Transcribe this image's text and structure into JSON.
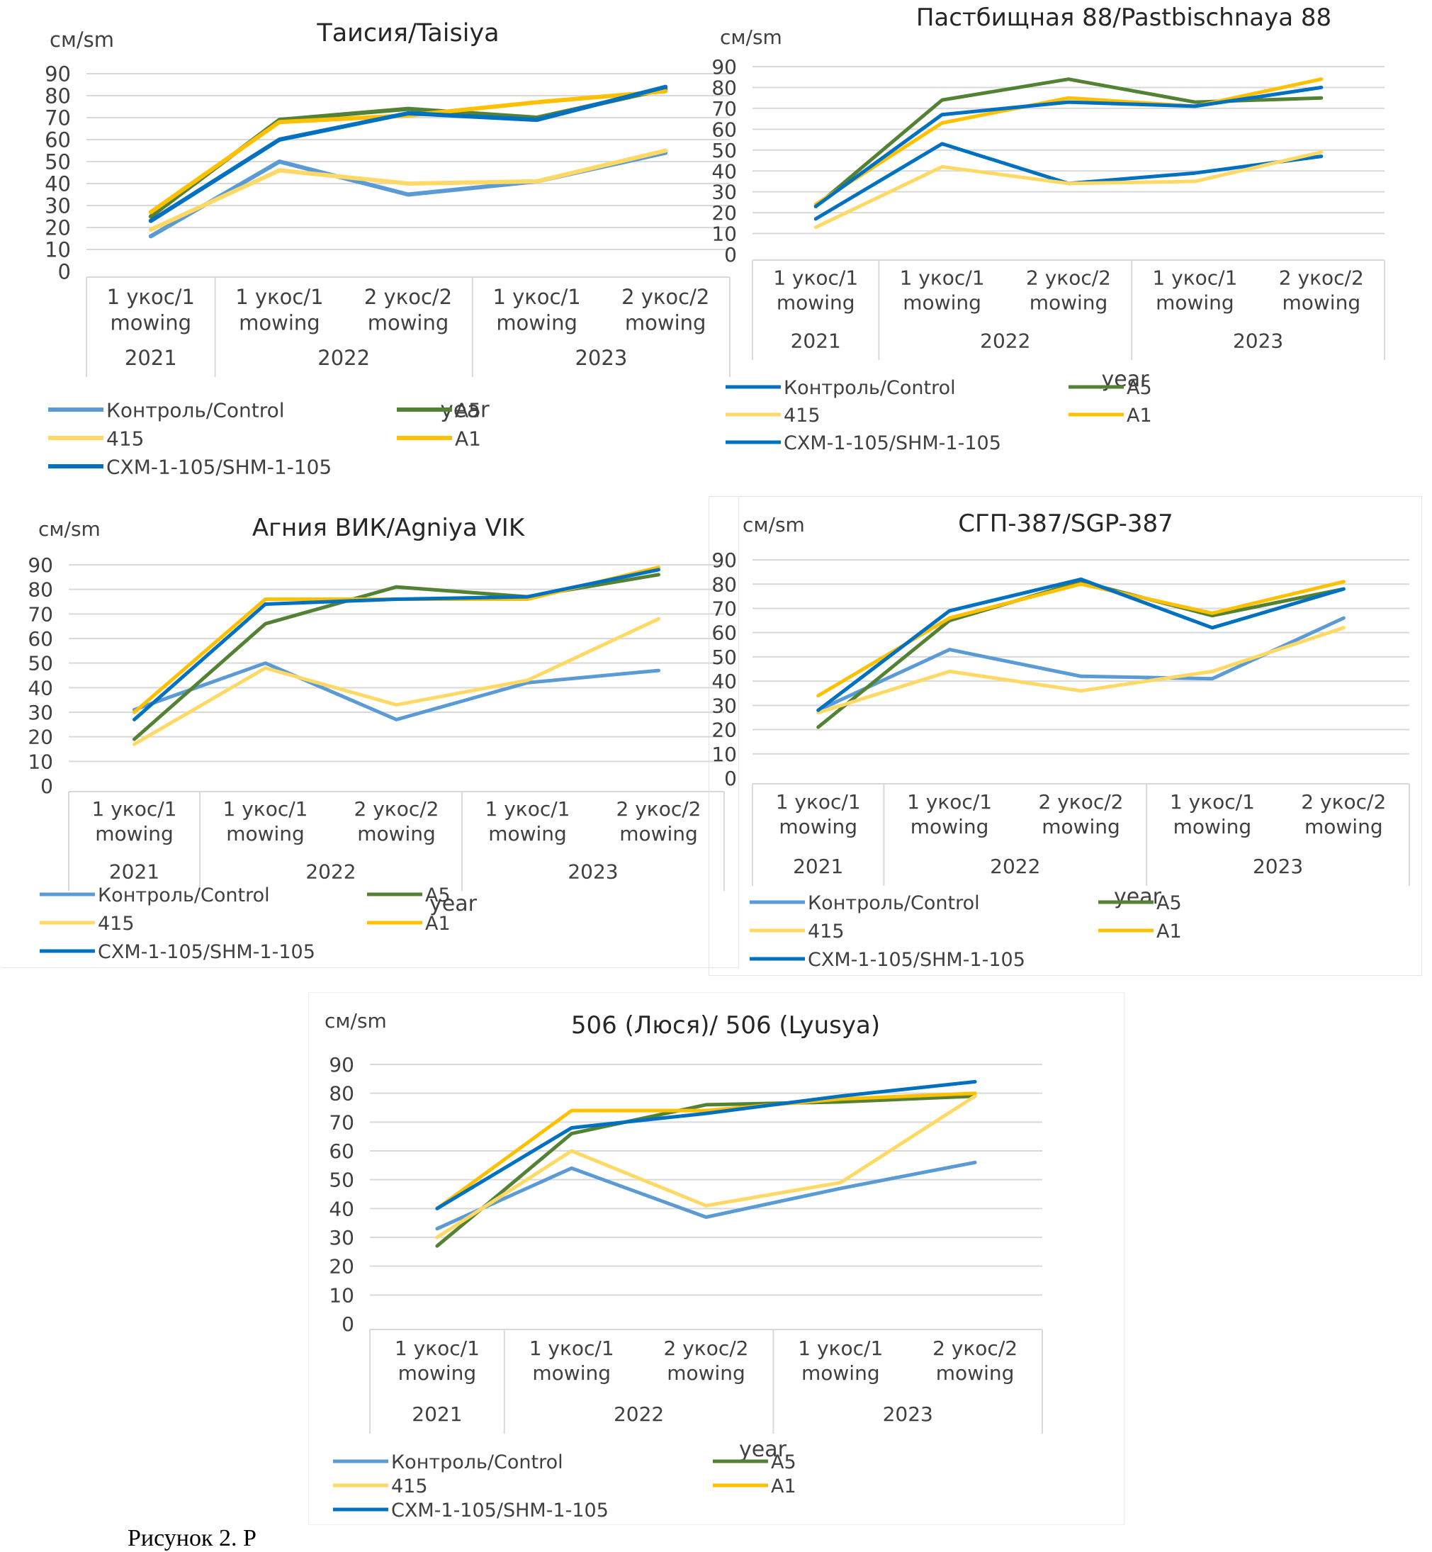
{
  "figure": {
    "caption_visible": "Рисунок 2. Р"
  },
  "series_meta": [
    {
      "key": "control",
      "name": "Контроль/Control"
    },
    {
      "key": "a5",
      "name": "A5"
    },
    {
      "key": "s415",
      "name": "415"
    },
    {
      "key": "a1",
      "name": "A1"
    },
    {
      "key": "shm",
      "name": "СХМ-1-105/SHM-1-105"
    }
  ],
  "chart_data": [
    {
      "type": "line",
      "title": "Таисия/Taisiya",
      "ylabel": "см/sm",
      "xlabel": "year",
      "ylim": [
        0,
        90
      ],
      "yticks": [
        0,
        10,
        20,
        30,
        40,
        50,
        60,
        70,
        80,
        90
      ],
      "grid": true,
      "legend_position": "bottom",
      "categories": [
        "1 укос/1 mowing",
        "1 укос/1 mowing",
        "2 укос/2 mowing",
        "1 укос/1 mowing",
        "2 укос/2 mowing"
      ],
      "category_lines": [
        [
          "1 укос/1",
          "mowing"
        ],
        [
          "1 укос/1",
          "mowing"
        ],
        [
          "2 укос/2",
          "mowing"
        ],
        [
          "1 укос/1",
          "mowing"
        ],
        [
          "2 укос/2",
          "mowing"
        ]
      ],
      "groups": [
        {
          "label": "2021",
          "span": 1
        },
        {
          "label": "2022",
          "span": 2
        },
        {
          "label": "2023",
          "span": 2
        }
      ],
      "series": [
        {
          "name": "Контроль/Control",
          "color": "#5B9BD5",
          "values": [
            16,
            50,
            35,
            41,
            54
          ]
        },
        {
          "name": "A5",
          "color": "#548235",
          "values": [
            25,
            69,
            74,
            70,
            83
          ]
        },
        {
          "name": "415",
          "color": "#FFD966",
          "values": [
            19,
            46,
            40,
            41,
            55
          ]
        },
        {
          "name": "A1",
          "color": "#FFC000",
          "values": [
            27,
            68,
            71,
            77,
            82
          ]
        },
        {
          "name": "СХМ-1-105/SHM-1-105",
          "color": "#0070C0",
          "values": [
            23,
            60,
            72,
            69,
            84
          ]
        }
      ]
    },
    {
      "type": "line",
      "title": "Пастбищная 88/Pastbischnaya 88",
      "ylabel": "см/sm",
      "xlabel": "year",
      "ylim": [
        0,
        90
      ],
      "yticks": [
        0,
        10,
        20,
        30,
        40,
        50,
        60,
        70,
        80,
        90
      ],
      "grid": true,
      "legend_position": "bottom",
      "categories": [
        "1 укос/1 mowing",
        "1 укос/1 mowing",
        "2 укос/2 mowing",
        "1 укос/1 mowing",
        "2 укос/2 mowing"
      ],
      "category_lines": [
        [
          "1 укос/1",
          "mowing"
        ],
        [
          "1 укос/1",
          "mowing"
        ],
        [
          "2 укос/2",
          "mowing"
        ],
        [
          "1 укос/1",
          "mowing"
        ],
        [
          "2 укос/2",
          "mowing"
        ]
      ],
      "groups": [
        {
          "label": "2021",
          "span": 1
        },
        {
          "label": "2022",
          "span": 2
        },
        {
          "label": "2023",
          "span": 2
        }
      ],
      "series": [
        {
          "name": "Контроль/Control",
          "color": "#0070C0",
          "values": [
            17,
            53,
            34,
            39,
            47
          ]
        },
        {
          "name": "A5",
          "color": "#548235",
          "values": [
            23,
            74,
            84,
            73,
            75
          ]
        },
        {
          "name": "415",
          "color": "#FFD966",
          "values": [
            13,
            42,
            34,
            35,
            49
          ]
        },
        {
          "name": "A1",
          "color": "#FFC000",
          "values": [
            24,
            63,
            75,
            71,
            84
          ]
        },
        {
          "name": "СХМ-1-105/SHM-1-105",
          "color": "#0070C0",
          "values": [
            23,
            67,
            73,
            71,
            80
          ]
        }
      ]
    },
    {
      "type": "line",
      "title": "Агния ВИК/Agniya VIK",
      "ylabel": "см/sm",
      "xlabel": "year",
      "ylim": [
        0,
        90
      ],
      "yticks": [
        0,
        10,
        20,
        30,
        40,
        50,
        60,
        70,
        80,
        90
      ],
      "grid": true,
      "legend_position": "bottom",
      "categories": [
        "1 укос/1 mowing",
        "1 укос/1 mowing",
        "2 укос/2 mowing",
        "1 укос/1 mowing",
        "2 укос/2 mowing"
      ],
      "category_lines": [
        [
          "1 укос/1",
          "mowing"
        ],
        [
          "1 укос/1",
          "mowing"
        ],
        [
          "2 укос/2",
          "mowing"
        ],
        [
          "1 укос/1",
          "mowing"
        ],
        [
          "2 укос/2",
          "mowing"
        ]
      ],
      "groups": [
        {
          "label": "2021",
          "span": 1
        },
        {
          "label": "2022",
          "span": 2
        },
        {
          "label": "2023",
          "span": 2
        }
      ],
      "series": [
        {
          "name": "Контроль/Control",
          "color": "#5B9BD5",
          "values": [
            31,
            50,
            27,
            42,
            47
          ]
        },
        {
          "name": "A5",
          "color": "#548235",
          "values": [
            19,
            66,
            81,
            77,
            86
          ]
        },
        {
          "name": "415",
          "color": "#FFD966",
          "values": [
            17,
            48,
            33,
            43,
            68
          ]
        },
        {
          "name": "A1",
          "color": "#FFC000",
          "values": [
            30,
            76,
            76,
            76,
            89
          ]
        },
        {
          "name": "СХМ-1-105/SHM-1-105",
          "color": "#0070C0",
          "values": [
            27,
            74,
            76,
            77,
            88
          ]
        }
      ]
    },
    {
      "type": "line",
      "title": "СГП-387/SGP-387",
      "ylabel": "см/sm",
      "xlabel": "year",
      "ylim": [
        0,
        90
      ],
      "yticks": [
        0,
        10,
        20,
        30,
        40,
        50,
        60,
        70,
        80,
        90
      ],
      "grid": true,
      "legend_position": "bottom",
      "categories": [
        "1 укос/1 mowing",
        "1 укос/1 mowing",
        "2 укос/2 mowing",
        "1 укос/1 mowing",
        "2 укос/2 mowing"
      ],
      "category_lines": [
        [
          "1 укос/1",
          "mowing"
        ],
        [
          "1 укос/1",
          "mowing"
        ],
        [
          "2 укос/2",
          "mowing"
        ],
        [
          "1 укос/1",
          "mowing"
        ],
        [
          "2 укос/2",
          "mowing"
        ]
      ],
      "groups": [
        {
          "label": "2021",
          "span": 1
        },
        {
          "label": "2022",
          "span": 2
        },
        {
          "label": "2023",
          "span": 2
        }
      ],
      "series": [
        {
          "name": "Контроль/Control",
          "color": "#5B9BD5",
          "values": [
            28,
            53,
            42,
            41,
            66
          ]
        },
        {
          "name": "A5",
          "color": "#548235",
          "values": [
            21,
            65,
            81,
            67,
            78
          ]
        },
        {
          "name": "415",
          "color": "#FFD966",
          "values": [
            27,
            44,
            36,
            44,
            62
          ]
        },
        {
          "name": "A1",
          "color": "#FFC000",
          "values": [
            34,
            66,
            80,
            68,
            81
          ]
        },
        {
          "name": "СХМ-1-105/SHM-1-105",
          "color": "#0070C0",
          "values": [
            28,
            69,
            82,
            62,
            78
          ]
        }
      ]
    },
    {
      "type": "line",
      "title": "506 (Люся)/ 506 (Lyusya)",
      "ylabel": "см/sm",
      "xlabel": "year",
      "ylim": [
        0,
        90
      ],
      "yticks": [
        0,
        10,
        20,
        30,
        40,
        50,
        60,
        70,
        80,
        90
      ],
      "grid": true,
      "legend_position": "bottom",
      "categories": [
        "1 укос/1 mowing",
        "1 укос/1 mowing",
        "2 укос/2 mowing",
        "1 укос/1 mowing",
        "2 укос/2 mowing"
      ],
      "category_lines": [
        [
          "1 укос/1",
          "mowing"
        ],
        [
          "1 укос/1",
          "mowing"
        ],
        [
          "2 укос/2",
          "mowing"
        ],
        [
          "1 укос/1",
          "mowing"
        ],
        [
          "2 укос/2",
          "mowing"
        ]
      ],
      "groups": [
        {
          "label": "2021",
          "span": 1
        },
        {
          "label": "2022",
          "span": 2
        },
        {
          "label": "2023",
          "span": 2
        }
      ],
      "series": [
        {
          "name": "Контроль/Control",
          "color": "#5B9BD5",
          "values": [
            33,
            54,
            37,
            47,
            56
          ]
        },
        {
          "name": "A5",
          "color": "#548235",
          "values": [
            27,
            66,
            76,
            77,
            79
          ]
        },
        {
          "name": "415",
          "color": "#FFD966",
          "values": [
            30,
            60,
            41,
            49,
            79
          ]
        },
        {
          "name": "A1",
          "color": "#FFC000",
          "values": [
            40,
            74,
            74,
            78,
            80
          ]
        },
        {
          "name": "СХМ-1-105/SHM-1-105",
          "color": "#0070C0",
          "values": [
            40,
            68,
            73,
            79,
            84
          ]
        }
      ]
    }
  ]
}
